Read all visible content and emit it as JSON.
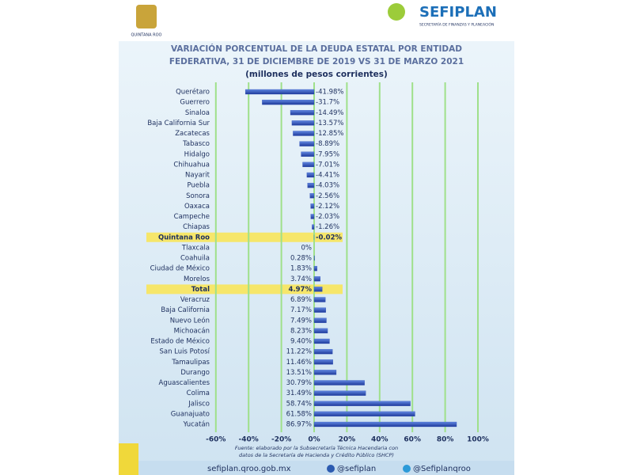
{
  "header": {
    "state": "QUINTANA ROO",
    "agency": "SEFIPLAN",
    "agency_subtitle": "SECRETARÍA DE FINANZAS Y PLANEACIÓN"
  },
  "chart_data": {
    "type": "hbar",
    "title": [
      "VARIACIÓN PORCENTUAL DE LA DEUDA ESTATAL POR ENTIDAD",
      "FEDERATIVA, 31 DE DICIEMBRE DE 2019 VS 31 DE MARZO 2021"
    ],
    "subtitle": "(millones de pesos corrientes)",
    "categories": [
      "Querétaro",
      "Guerrero",
      "Sinaloa",
      "Baja California Sur",
      "Zacatecas",
      "Tabasco",
      "Hidalgo",
      "Chihuahua",
      "Nayarit",
      "Puebla",
      "Sonora",
      "Oaxaca",
      "Campeche",
      "Chiapas",
      "Quintana Roo",
      "Tlaxcala",
      "Coahuila",
      "Ciudad de México",
      "Morelos",
      "Total",
      "Veracruz",
      "Baja California",
      "Nuevo León",
      "Michoacán",
      "Estado de México",
      "San Luis Potosí",
      "Tamaulipas",
      "Durango",
      "Aguascalientes",
      "Colima",
      "Jalisco",
      "Guanajuato",
      "Yucatán"
    ],
    "values": [
      -41.98,
      -31.7,
      -14.49,
      -13.57,
      -12.85,
      -8.89,
      -7.95,
      -7.01,
      -4.41,
      -4.03,
      -2.56,
      -2.12,
      -2.03,
      -1.26,
      -0.02,
      0,
      0.28,
      1.83,
      3.74,
      4.97,
      6.89,
      7.17,
      7.49,
      8.23,
      9.4,
      11.22,
      11.46,
      13.51,
      30.79,
      31.49,
      58.74,
      61.58,
      86.97
    ],
    "value_labels": [
      "-41.98%",
      "-31.7%",
      "-14.49%",
      "-13.57%",
      "-12.85%",
      "-8.89%",
      "-7.95%",
      "-7.01%",
      "-4.41%",
      "-4.03%",
      "-2.56%",
      "-2.12%",
      "-2.03%",
      "-1.26%",
      "-0.02%",
      "0%",
      "0.28%",
      "1.83%",
      "3.74%",
      "4.97%",
      "6.89%",
      "7.17%",
      "7.49%",
      "8.23%",
      "9.40%",
      "11.22%",
      "11.46%",
      "13.51%",
      "30.79%",
      "31.49%",
      "58.74%",
      "61.58%",
      "86.97%"
    ],
    "color": "#2f4fb8",
    "highlight_indices": [
      14,
      19
    ],
    "highlight_color": "#f6e66a",
    "xlim": [
      -60,
      100
    ],
    "xticks": [
      {
        "value": -60,
        "label": "-60%"
      },
      {
        "value": -40,
        "label": "-40%"
      },
      {
        "value": -20,
        "label": "-20%"
      },
      {
        "value": 0,
        "label": "0%"
      },
      {
        "value": 20,
        "label": "20%"
      },
      {
        "value": 40,
        "label": "40%"
      },
      {
        "value": 60,
        "label": "60%"
      },
      {
        "value": 80,
        "label": "80%"
      },
      {
        "value": 100,
        "label": "100%"
      }
    ],
    "grid": true,
    "grid_color": "#9fe08a"
  },
  "footer": {
    "source": [
      "Fuente: elaborado por la Subsecretaría Técnica Hacendaria con",
      "datos de la Secretaría de Hacienda y Crédito Público (SHCP)"
    ],
    "website": "sefiplan.qroo.gob.mx",
    "facebook": "@sefiplan",
    "twitter": "@Sefiplanqroo"
  }
}
